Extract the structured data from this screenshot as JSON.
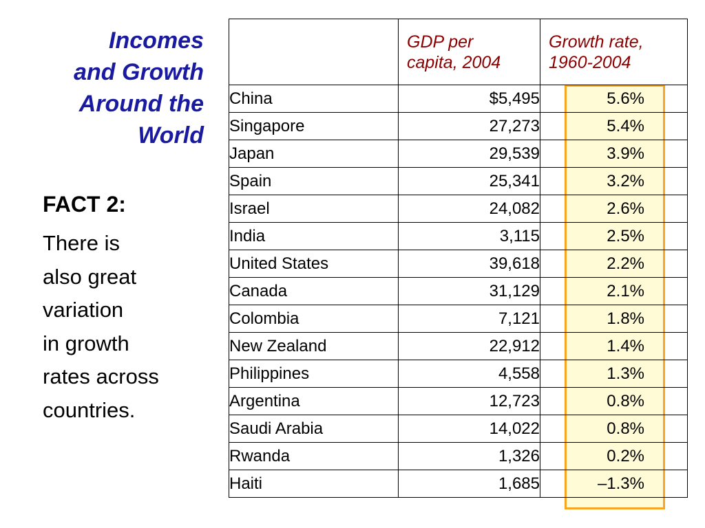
{
  "title_lines": [
    "Incomes",
    "and Growth",
    "Around the",
    "World"
  ],
  "fact_heading": "FACT 2:",
  "fact_lines": [
    "There is",
    "also great",
    "variation",
    "in growth",
    "rates across",
    "countries."
  ],
  "table": {
    "header_blank": "",
    "header_gdp": [
      "GDP per",
      "capita, 2004"
    ],
    "header_growth": [
      "Growth rate,",
      "1960-2004"
    ],
    "rows": [
      {
        "country": "China",
        "gdp": "$5,495",
        "growth": "5.6%"
      },
      {
        "country": "Singapore",
        "gdp": "27,273",
        "growth": "5.4%"
      },
      {
        "country": "Japan",
        "gdp": "29,539",
        "growth": "3.9%"
      },
      {
        "country": "Spain",
        "gdp": "25,341",
        "growth": "3.2%"
      },
      {
        "country": "Israel",
        "gdp": "24,082",
        "growth": "2.6%"
      },
      {
        "country": "India",
        "gdp": "3,115",
        "growth": "2.5%"
      },
      {
        "country": "United States",
        "gdp": "39,618",
        "growth": "2.2%"
      },
      {
        "country": "Canada",
        "gdp": "31,129",
        "growth": "2.1%"
      },
      {
        "country": "Colombia",
        "gdp": "7,121",
        "growth": "1.8%"
      },
      {
        "country": "New Zealand",
        "gdp": "22,912",
        "growth": "1.4%"
      },
      {
        "country": "Philippines",
        "gdp": "4,558",
        "growth": "1.3%"
      },
      {
        "country": "Argentina",
        "gdp": "12,723",
        "growth": "0.8%"
      },
      {
        "country": "Saudi Arabia",
        "gdp": "14,022",
        "growth": "0.8%"
      },
      {
        "country": "Rwanda",
        "gdp": "1,326",
        "growth": "0.2%"
      },
      {
        "country": "Haiti",
        "gdp": "1,685",
        "growth": "–1.3%"
      }
    ]
  },
  "colors": {
    "title": "#1a1aa0",
    "header_text": "#8b0000",
    "highlight_border": "#f5a623",
    "highlight_fill": "#fffbd6"
  }
}
